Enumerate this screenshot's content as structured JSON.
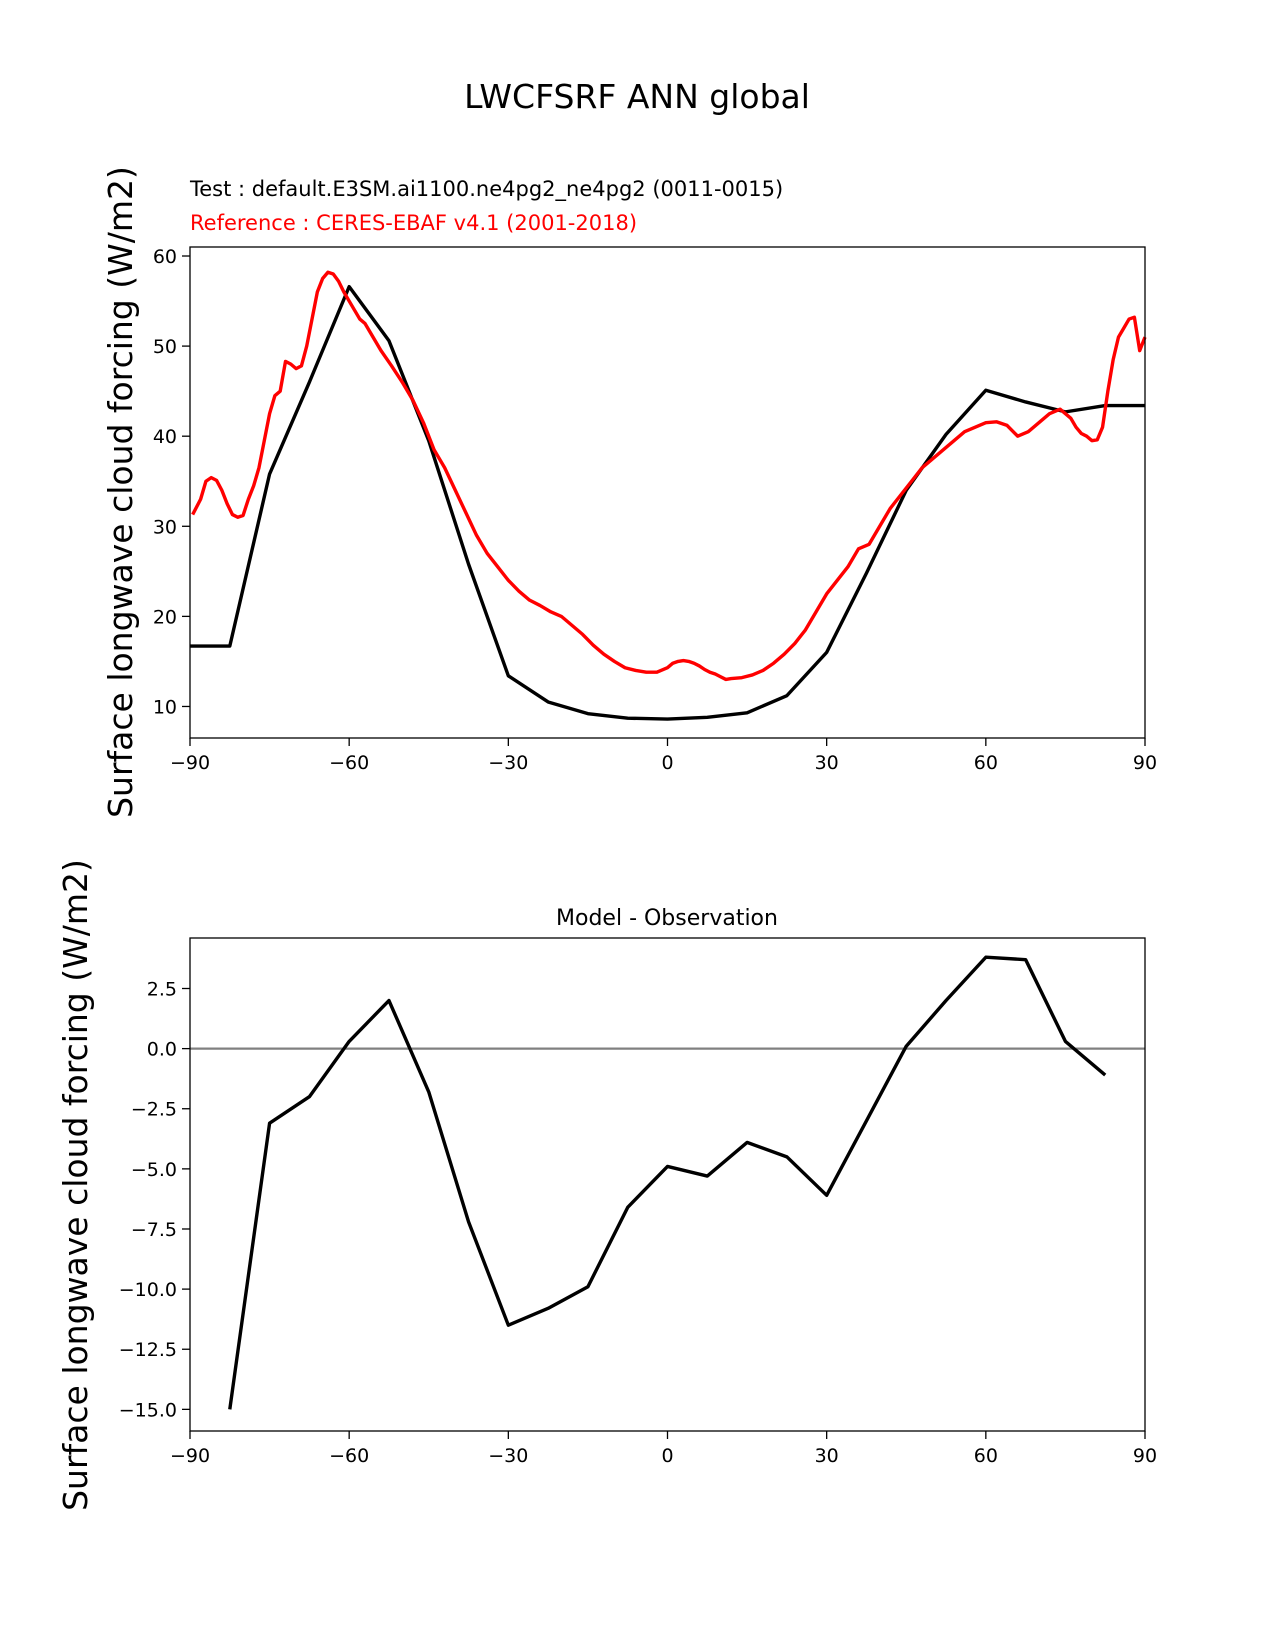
{
  "figure": {
    "title": "LWCFSRF ANN global",
    "test_label": "Test : default.E3SM.ai1100.ne4pg2_ne4pg2 (0011-0015)",
    "reference_label": "Reference : CERES-EBAF v4.1 (2001-2018)"
  },
  "colors": {
    "test": "#000000",
    "reference": "#ff0000",
    "zero_line": "#808080"
  },
  "chart_data": [
    {
      "type": "line",
      "title": "",
      "xlabel": "",
      "ylabel": "Surface longwave cloud forcing (W/m2)",
      "xlim": [
        -90,
        90
      ],
      "ylim": [
        6.5,
        61
      ],
      "xticks": [
        -90,
        -60,
        -30,
        0,
        30,
        60,
        90
      ],
      "xtick_labels": [
        "−90",
        "−60",
        "−30",
        "0",
        "30",
        "60",
        "90"
      ],
      "yticks": [
        10,
        20,
        30,
        40,
        50,
        60
      ],
      "ytick_labels": [
        "10",
        "20",
        "30",
        "40",
        "50",
        "60"
      ],
      "series": [
        {
          "name": "Test : default.E3SM.ai1100.ne4pg2_ne4pg2 (0011-0015)",
          "x": [
            -90,
            -82.5,
            -75,
            -67.5,
            -60,
            -52.5,
            -45,
            -37.5,
            -30,
            -22.5,
            -15,
            -7.5,
            0,
            7.5,
            15,
            22.5,
            30,
            37.5,
            45,
            52.5,
            60,
            67.5,
            75,
            82.5,
            90
          ],
          "y": [
            16.7,
            16.7,
            35.8,
            46.0,
            56.6,
            50.6,
            39.5,
            25.8,
            13.4,
            10.5,
            9.2,
            8.7,
            8.6,
            8.8,
            9.3,
            11.2,
            16.0,
            24.8,
            34.0,
            40.2,
            45.1,
            43.8,
            42.7,
            43.4,
            43.4
          ]
        },
        {
          "name": "Reference : CERES-EBAF v4.1 (2001-2018)",
          "x": [
            -89.5,
            -88,
            -87,
            -86,
            -85,
            -84,
            -83,
            -82,
            -81,
            -80,
            -79,
            -78,
            -77,
            -76,
            -75,
            -74,
            -73,
            -72,
            -71,
            -70,
            -69,
            -68,
            -67,
            -66,
            -65,
            -64,
            -63,
            -62,
            -61,
            -60,
            -59,
            -58,
            -57,
            -56,
            -55,
            -54,
            -52,
            -50,
            -48,
            -46,
            -44,
            -42,
            -40,
            -38,
            -36,
            -34,
            -32,
            -30,
            -28,
            -26,
            -24,
            -22,
            -20,
            -18,
            -16,
            -14,
            -12,
            -10,
            -8,
            -6,
            -4,
            -2,
            0,
            1,
            2,
            3,
            4,
            5,
            6,
            7,
            8,
            9,
            10,
            11,
            12,
            14,
            16,
            18,
            20,
            22,
            24,
            26,
            28,
            30,
            32,
            34,
            36,
            38,
            40,
            42,
            44,
            46,
            48,
            50,
            52,
            54,
            56,
            58,
            60,
            62,
            64,
            66,
            68,
            70,
            72,
            74,
            76,
            77,
            78,
            79,
            80,
            81,
            82,
            83,
            84,
            85,
            86,
            87,
            88,
            89,
            90
          ],
          "y": [
            31.3,
            33.0,
            35.0,
            35.4,
            35.1,
            34.0,
            32.5,
            31.3,
            31.0,
            31.2,
            33.0,
            34.5,
            36.5,
            39.5,
            42.5,
            44.5,
            45.0,
            48.3,
            48.0,
            47.5,
            47.8,
            50.0,
            53.0,
            56.0,
            57.5,
            58.2,
            58.0,
            57.2,
            56.0,
            55.0,
            54.0,
            53.0,
            52.5,
            51.5,
            50.5,
            49.5,
            47.8,
            46.0,
            44.0,
            41.5,
            38.5,
            36.5,
            34.0,
            31.5,
            29.0,
            27.0,
            25.5,
            24.0,
            22.8,
            21.8,
            21.2,
            20.5,
            20.0,
            19.0,
            18.0,
            16.8,
            15.8,
            15.0,
            14.3,
            14.0,
            13.8,
            13.8,
            14.3,
            14.8,
            15.0,
            15.1,
            15.0,
            14.8,
            14.5,
            14.1,
            13.8,
            13.6,
            13.3,
            13.0,
            13.1,
            13.2,
            13.5,
            14.0,
            14.8,
            15.8,
            17.0,
            18.5,
            20.5,
            22.5,
            24.0,
            25.5,
            27.5,
            28.0,
            30.0,
            32.0,
            33.5,
            35.0,
            36.5,
            37.5,
            38.5,
            39.5,
            40.5,
            41.0,
            41.5,
            41.6,
            41.2,
            40.0,
            40.5,
            41.5,
            42.5,
            43.0,
            42.0,
            41.0,
            40.3,
            40.0,
            39.5,
            39.6,
            41.0,
            45.0,
            48.5,
            51.0,
            52.0,
            53.0,
            53.2,
            49.5,
            51.0
          ]
        }
      ]
    },
    {
      "type": "line",
      "title": "Model - Observation",
      "xlabel": "",
      "ylabel": "Surface longwave cloud forcing (W/m2)",
      "xlim": [
        -90,
        90
      ],
      "ylim": [
        -15.9,
        4.6
      ],
      "xticks": [
        -90,
        -60,
        -30,
        0,
        30,
        60,
        90
      ],
      "xtick_labels": [
        "−90",
        "−60",
        "−30",
        "0",
        "30",
        "60",
        "90"
      ],
      "yticks": [
        2.5,
        0.0,
        -2.5,
        -5.0,
        -7.5,
        -10.0,
        -12.5,
        -15.0
      ],
      "ytick_labels": [
        "2.5",
        "0.0",
        "−2.5",
        "−5.0",
        "−7.5",
        "−10.0",
        "−12.5",
        "−15.0"
      ],
      "zero_line": 0,
      "series": [
        {
          "name": "",
          "x": [
            -82.5,
            -75,
            -67.5,
            -60,
            -52.5,
            -45,
            -37.5,
            -30,
            -22.5,
            -15,
            -7.5,
            0,
            7.5,
            15,
            22.5,
            30,
            37.5,
            45,
            52.5,
            60,
            67.5,
            75,
            82.5
          ],
          "y": [
            -15.0,
            -3.1,
            -2.0,
            0.3,
            2.0,
            -1.8,
            -7.2,
            -11.5,
            -10.8,
            -9.9,
            -6.6,
            -4.9,
            -5.3,
            -3.9,
            -4.5,
            -6.1,
            -3.0,
            0.1,
            2.0,
            3.8,
            3.7,
            0.3,
            -1.1
          ]
        }
      ]
    }
  ]
}
